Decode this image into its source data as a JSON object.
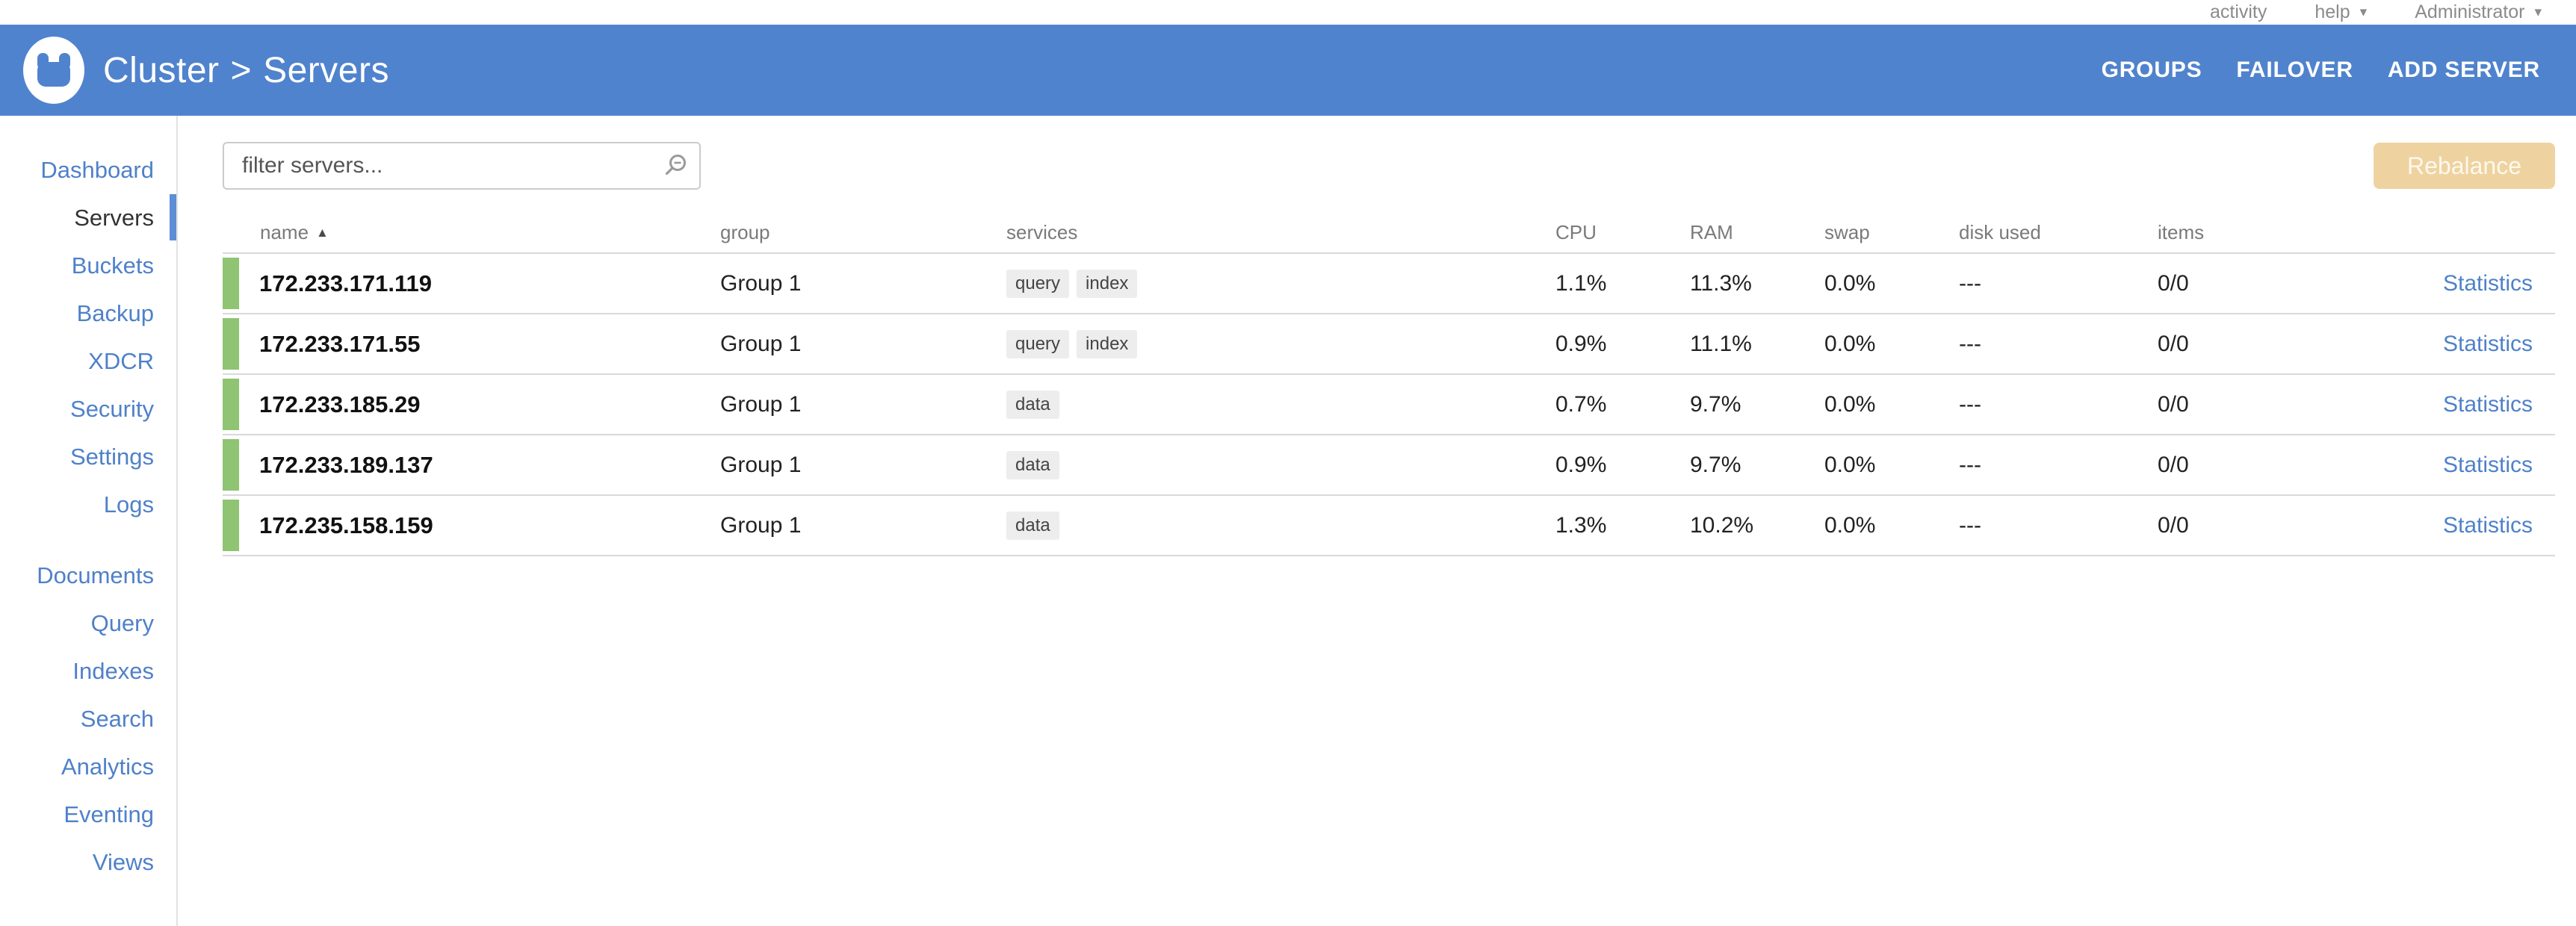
{
  "topbar": {
    "activity_label": "activity",
    "help_label": "help",
    "user_label": "Administrator"
  },
  "header": {
    "breadcrumb": {
      "section": "Cluster",
      "separator": ">",
      "page": "Servers"
    },
    "actions": [
      {
        "label": "GROUPS"
      },
      {
        "label": "FAILOVER"
      },
      {
        "label": "ADD SERVER"
      }
    ]
  },
  "sidebar": {
    "groups": [
      {
        "items": [
          {
            "label": "Dashboard"
          },
          {
            "label": "Servers",
            "active": true
          },
          {
            "label": "Buckets"
          },
          {
            "label": "Backup"
          },
          {
            "label": "XDCR"
          },
          {
            "label": "Security"
          },
          {
            "label": "Settings"
          },
          {
            "label": "Logs"
          }
        ]
      },
      {
        "items": [
          {
            "label": "Documents"
          },
          {
            "label": "Query"
          },
          {
            "label": "Indexes"
          },
          {
            "label": "Search"
          },
          {
            "label": "Analytics"
          },
          {
            "label": "Eventing"
          },
          {
            "label": "Views"
          }
        ]
      }
    ]
  },
  "toolbar": {
    "filter_placeholder": "filter servers...",
    "rebalance_label": "Rebalance",
    "rebalance_enabled": false
  },
  "table": {
    "columns": [
      "name",
      "group",
      "services",
      "CPU",
      "RAM",
      "swap",
      "disk used",
      "items"
    ],
    "sort": {
      "column": "name",
      "direction": "asc"
    },
    "row_action_label": "Statistics",
    "rows": [
      {
        "name": "172.233.171.119",
        "group": "Group 1",
        "services": [
          "query",
          "index"
        ],
        "cpu": "1.1%",
        "ram": "11.3%",
        "swap": "0.0%",
        "disk_used": "---",
        "items": "0/0",
        "health": "healthy"
      },
      {
        "name": "172.233.171.55",
        "group": "Group 1",
        "services": [
          "query",
          "index"
        ],
        "cpu": "0.9%",
        "ram": "11.1%",
        "swap": "0.0%",
        "disk_used": "---",
        "items": "0/0",
        "health": "healthy"
      },
      {
        "name": "172.233.185.29",
        "group": "Group 1",
        "services": [
          "data"
        ],
        "cpu": "0.7%",
        "ram": "9.7%",
        "swap": "0.0%",
        "disk_used": "---",
        "items": "0/0",
        "health": "healthy"
      },
      {
        "name": "172.233.189.137",
        "group": "Group 1",
        "services": [
          "data"
        ],
        "cpu": "0.9%",
        "ram": "9.7%",
        "swap": "0.0%",
        "disk_used": "---",
        "items": "0/0",
        "health": "healthy"
      },
      {
        "name": "172.235.158.159",
        "group": "Group 1",
        "services": [
          "data"
        ],
        "cpu": "1.3%",
        "ram": "10.2%",
        "swap": "0.0%",
        "disk_used": "---",
        "items": "0/0",
        "health": "healthy"
      }
    ]
  },
  "icons": {
    "caret_down": "▾",
    "sort_asc": "▲",
    "search": "magnifier",
    "logo": "couchbase-logo"
  },
  "colors": {
    "header_blue": "#5083cd",
    "link_blue": "#4f81c9",
    "indicator_blue": "#5d8ed6",
    "health_green": "#8fc472",
    "rebalance_bg": "#eed3a1",
    "border_gray": "#d9d9d9",
    "divider": "#e2e2e2",
    "topbar_gray": "#8b8b8b",
    "badge_bg": "#ededed"
  }
}
